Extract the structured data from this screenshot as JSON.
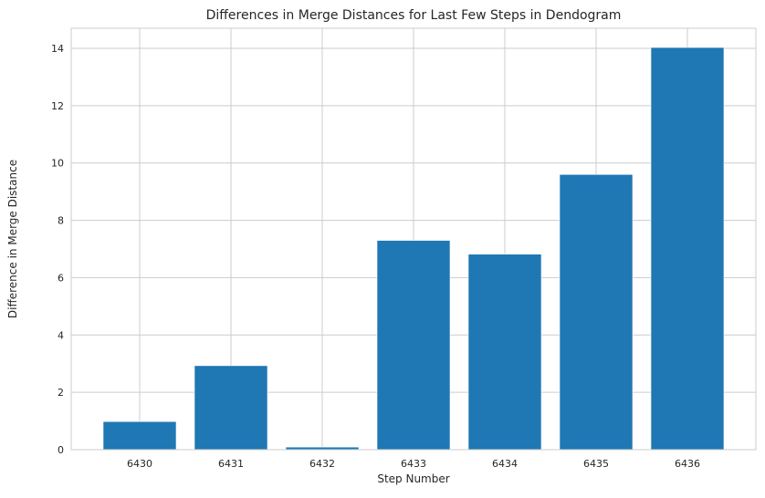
{
  "chart_data": {
    "type": "bar",
    "title": "Differences in Merge Distances for Last Few Steps in Dendogram",
    "xlabel": "Step Number",
    "ylabel": "Difference in Merge Distance",
    "categories": [
      "6430",
      "6431",
      "6432",
      "6433",
      "6434",
      "6435",
      "6436"
    ],
    "values": [
      0.98,
      2.93,
      0.09,
      7.3,
      6.82,
      9.6,
      14.03
    ],
    "ylim": [
      0,
      14.7
    ],
    "yticks": [
      0,
      2,
      4,
      6,
      8,
      10,
      12,
      14
    ],
    "grid": true,
    "bar_color": "#1f77b4",
    "grid_color": "#cccccc"
  }
}
